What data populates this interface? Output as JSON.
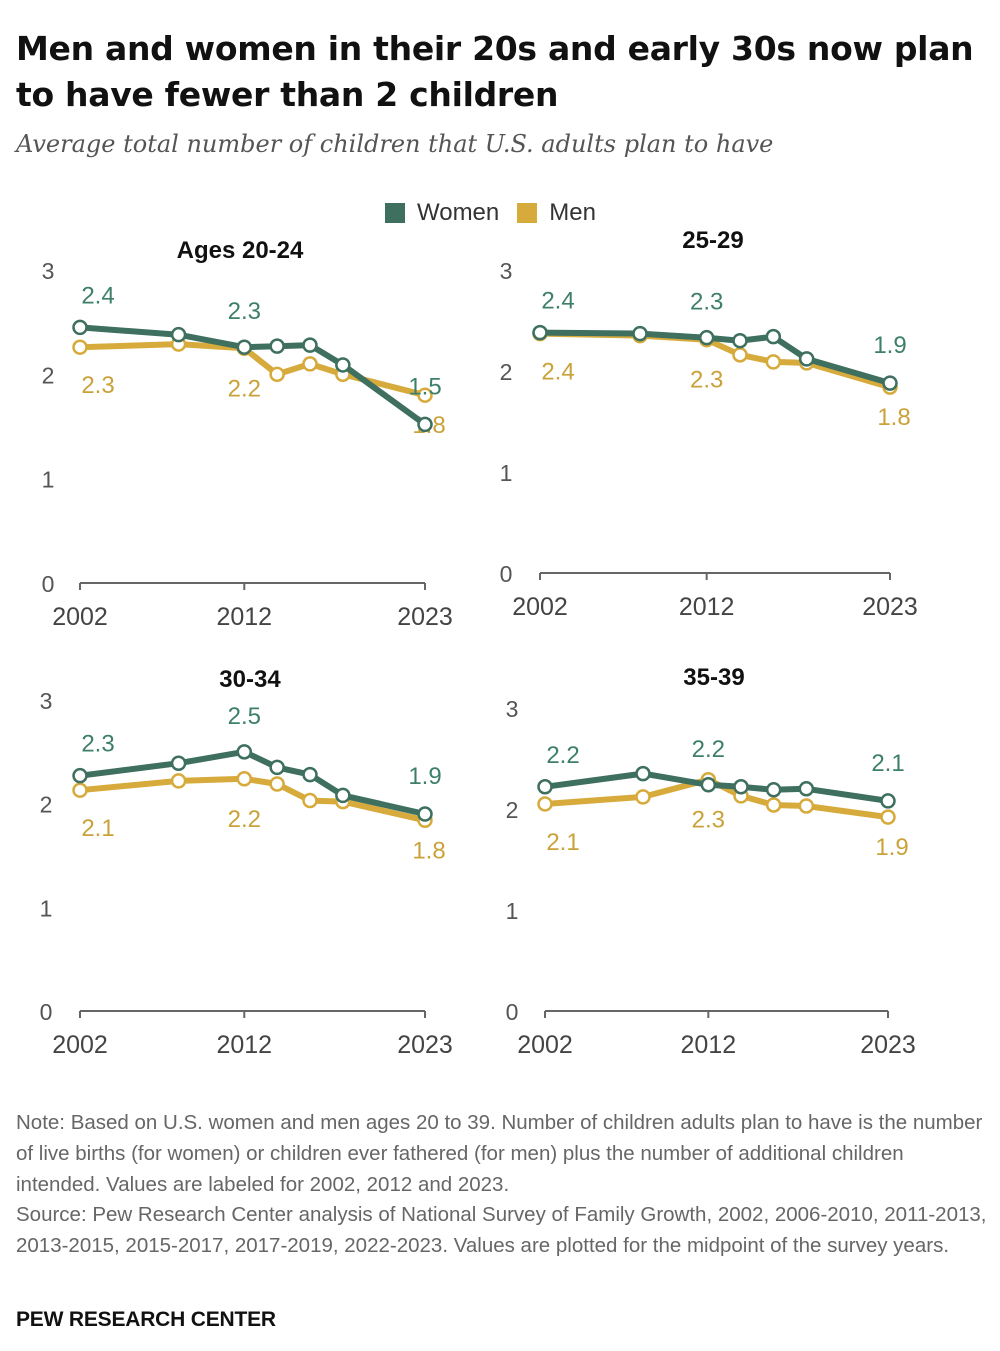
{
  "title": "Men and women in their 20s and early 30s now plan to have fewer than 2 children",
  "subtitle": "Average total number of children that U.S. adults plan to have",
  "legend": [
    {
      "label": "Women",
      "color": "#3e6f5f"
    },
    {
      "label": "Men",
      "color": "#d7aa3c"
    }
  ],
  "colors": {
    "women": "#3e6f5f",
    "men": "#d7aa3c",
    "women_label": "#3e7f6a",
    "men_label": "#c9a23a",
    "axis": "#666666"
  },
  "chart_data": [
    {
      "type": "line",
      "title": "Ages 20-24",
      "x_ticks": [
        "2002",
        "2012",
        "2023"
      ],
      "y_ticks": [
        "0",
        "1",
        "2",
        "3"
      ],
      "ylim": [
        0,
        3
      ],
      "series": [
        {
          "name": "Women",
          "x": [
            2002,
            2008,
            2012,
            2014,
            2016,
            2018,
            2023
          ],
          "values": [
            2.45,
            2.38,
            2.26,
            2.27,
            2.28,
            2.09,
            1.52
          ],
          "labels": [
            {
              "x": 2002,
              "text": "2.4"
            },
            {
              "x": 2012,
              "text": "2.3"
            },
            {
              "x": 2023,
              "text": "1.5"
            }
          ]
        },
        {
          "name": "Men",
          "x": [
            2002,
            2008,
            2012,
            2014,
            2016,
            2018,
            2023
          ],
          "values": [
            2.26,
            2.29,
            2.25,
            2.0,
            2.1,
            2.0,
            1.8
          ],
          "labels": [
            {
              "x": 2002,
              "text": "2.3"
            },
            {
              "x": 2012,
              "text": "2.2"
            },
            {
              "x": 2023,
              "text": "1.8"
            }
          ]
        }
      ]
    },
    {
      "type": "line",
      "title": "25-29",
      "x_ticks": [
        "2002",
        "2012",
        "2023"
      ],
      "y_ticks": [
        "0",
        "1",
        "2",
        "3"
      ],
      "ylim": [
        0,
        3
      ],
      "series": [
        {
          "name": "Women",
          "x": [
            2002,
            2008,
            2012,
            2014,
            2016,
            2018,
            2023
          ],
          "values": [
            2.38,
            2.37,
            2.33,
            2.3,
            2.34,
            2.12,
            1.88
          ],
          "labels": [
            {
              "x": 2002,
              "text": "2.4"
            },
            {
              "x": 2012,
              "text": "2.3"
            },
            {
              "x": 2023,
              "text": "1.9"
            }
          ]
        },
        {
          "name": "Men",
          "x": [
            2002,
            2008,
            2012,
            2014,
            2016,
            2018,
            2023
          ],
          "values": [
            2.37,
            2.35,
            2.31,
            2.16,
            2.09,
            2.08,
            1.84
          ],
          "labels": [
            {
              "x": 2002,
              "text": "2.4"
            },
            {
              "x": 2012,
              "text": "2.3"
            },
            {
              "x": 2023,
              "text": "1.8"
            }
          ]
        }
      ]
    },
    {
      "type": "line",
      "title": "30-34",
      "x_ticks": [
        "2002",
        "2012",
        "2023"
      ],
      "y_ticks": [
        "0",
        "1",
        "2",
        "3"
      ],
      "ylim": [
        0,
        3
      ],
      "series": [
        {
          "name": "Women",
          "x": [
            2002,
            2008,
            2012,
            2014,
            2016,
            2018,
            2023
          ],
          "values": [
            2.27,
            2.39,
            2.5,
            2.35,
            2.28,
            2.08,
            1.9
          ],
          "labels": [
            {
              "x": 2002,
              "text": "2.3"
            },
            {
              "x": 2012,
              "text": "2.5"
            },
            {
              "x": 2023,
              "text": "1.9"
            }
          ]
        },
        {
          "name": "Men",
          "x": [
            2002,
            2008,
            2012,
            2014,
            2016,
            2018,
            2023
          ],
          "values": [
            2.13,
            2.22,
            2.24,
            2.19,
            2.03,
            2.02,
            1.84
          ],
          "labels": [
            {
              "x": 2002,
              "text": "2.1"
            },
            {
              "x": 2012,
              "text": "2.2"
            },
            {
              "x": 2023,
              "text": "1.8"
            }
          ]
        }
      ]
    },
    {
      "type": "line",
      "title": "35-39",
      "x_ticks": [
        "2002",
        "2012",
        "2023"
      ],
      "y_ticks": [
        "0",
        "1",
        "2",
        "3"
      ],
      "ylim": [
        0,
        3
      ],
      "series": [
        {
          "name": "Women",
          "x": [
            2002,
            2008,
            2012,
            2014,
            2016,
            2018,
            2023
          ],
          "values": [
            2.22,
            2.35,
            2.24,
            2.22,
            2.19,
            2.2,
            2.08
          ],
          "labels": [
            {
              "x": 2002,
              "text": "2.2"
            },
            {
              "x": 2012,
              "text": "2.2"
            },
            {
              "x": 2023,
              "text": "2.1"
            }
          ]
        },
        {
          "name": "Men",
          "x": [
            2002,
            2008,
            2012,
            2014,
            2016,
            2018,
            2023
          ],
          "values": [
            2.05,
            2.12,
            2.29,
            2.13,
            2.04,
            2.03,
            1.92
          ],
          "labels": [
            {
              "x": 2002,
              "text": "2.1"
            },
            {
              "x": 2012,
              "text": "2.3"
            },
            {
              "x": 2023,
              "text": "1.9"
            }
          ]
        }
      ]
    }
  ],
  "note": "Note: Based on U.S. women and men ages 20 to 39. Number of children adults plan to have is the number of live births (for women) or children ever fathered (for men) plus the number of additional children intended. Values are labeled for 2002, 2012 and 2023.",
  "source": "Source: Pew Research Center analysis of National Survey of Family Growth, 2002, 2006-2010, 2011-2013, 2013-2015, 2015-2017, 2017-2019, 2022-2023. Values are plotted for the midpoint of the survey years.",
  "footer": "PEW RESEARCH CENTER"
}
